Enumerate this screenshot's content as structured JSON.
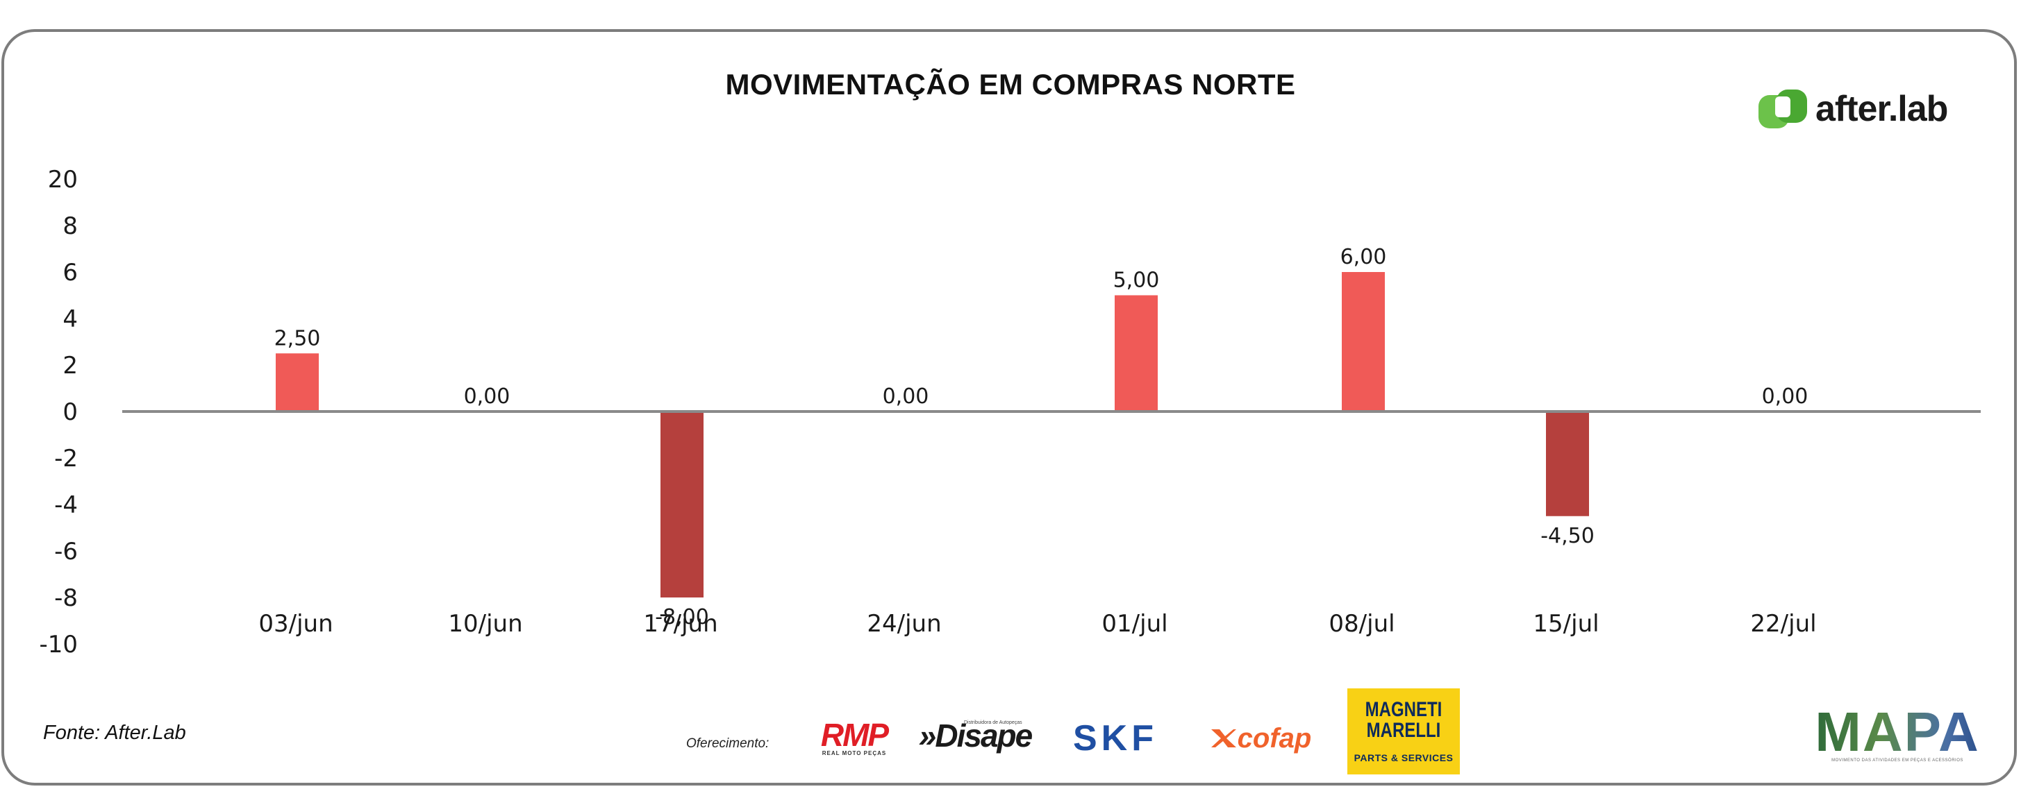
{
  "title": "MOVIMENTAÇÃO EM COMPRAS NORTE",
  "brand": {
    "name": "after.lab",
    "icon": "afterlab-logo-icon",
    "color": "#6cc24a"
  },
  "footer": {
    "source": "Fonte: After.Lab",
    "offer_label": "Oferecimento:"
  },
  "sponsors": {
    "rmp": {
      "name": "RMP",
      "tagline": "REAL MOTO PEÇAS"
    },
    "disape": {
      "name": "»Disape",
      "tagline": "Distribuidora de Autopeças"
    },
    "skf": {
      "name": "SKF"
    },
    "cofap": {
      "name": "cofap"
    },
    "magneti": {
      "name": "MAGNETI MARELLI",
      "tagline": "PARTS & SERVICES"
    },
    "mapa": {
      "name": "MAPA",
      "tagline": "MOVIMENTO DAS ATIVIDADES EM PEÇAS E ACESSÓRIOS"
    }
  },
  "colors": {
    "positive": "#f05a57",
    "negative": "#b5403d",
    "axis": "#8a8a8a"
  },
  "chart_data": {
    "type": "bar",
    "title": "MOVIMENTAÇÃO EM COMPRAS NORTE",
    "xlabel": "",
    "ylabel": "",
    "categories": [
      "03/jun",
      "10/jun",
      "17/jun",
      "24/jun",
      "01/jul",
      "08/jul",
      "15/jul",
      "22/jul"
    ],
    "values": [
      2.5,
      0.0,
      -8.0,
      0.0,
      5.0,
      6.0,
      -4.5,
      0.0
    ],
    "value_labels": [
      "2,50",
      "0,00",
      "-8,00",
      "0,00",
      "5,00",
      "6,00",
      "-4,50",
      "0,00"
    ],
    "y_ticks": [
      "20",
      "8",
      "6",
      "4",
      "2",
      "0",
      "-2",
      "-4",
      "-6",
      "-8",
      "-10"
    ],
    "grid": false,
    "legend": "none"
  }
}
